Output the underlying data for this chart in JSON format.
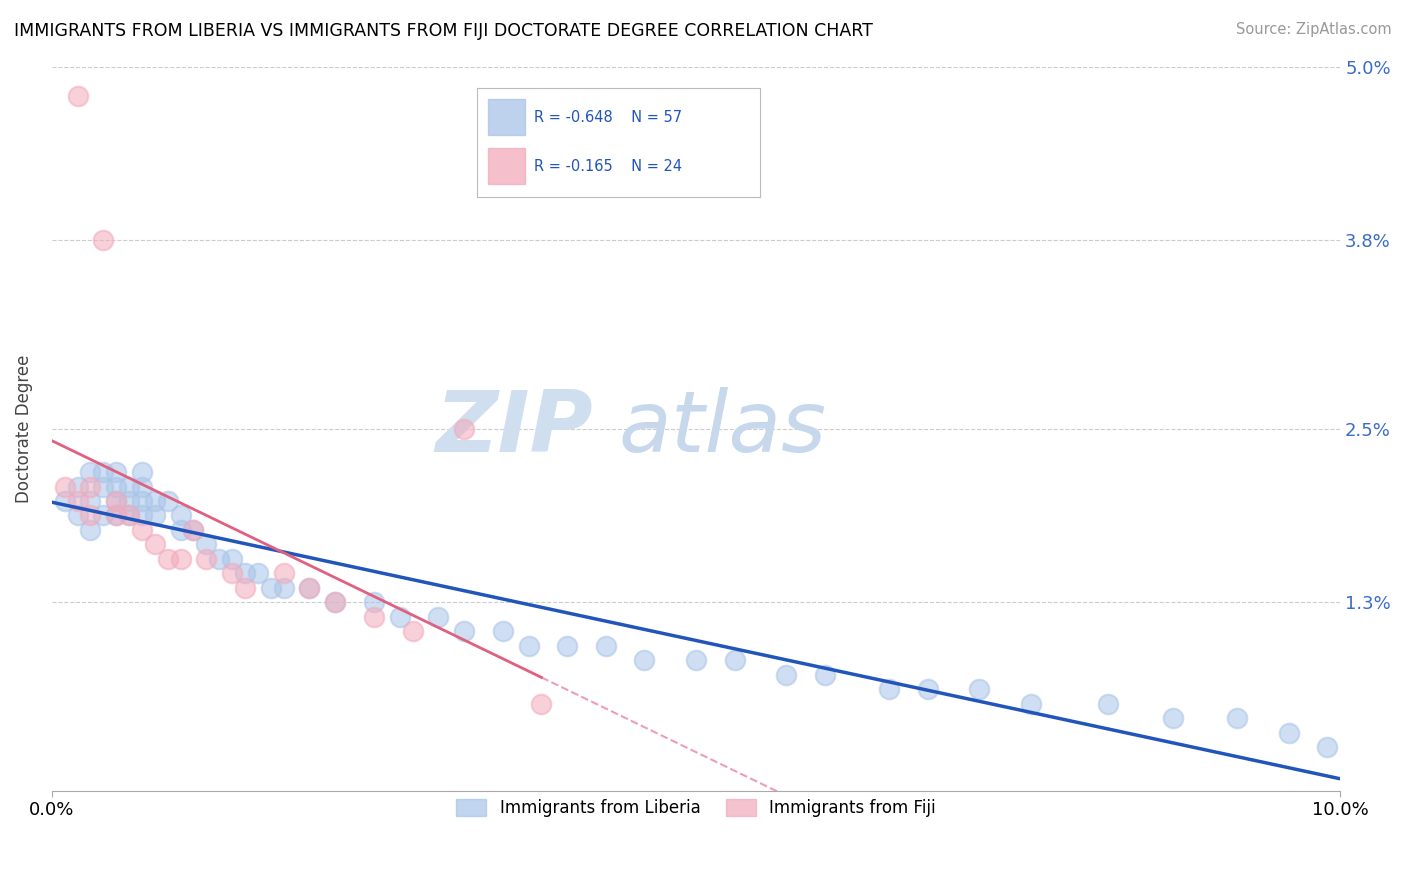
{
  "title": "IMMIGRANTS FROM LIBERIA VS IMMIGRANTS FROM FIJI DOCTORATE DEGREE CORRELATION CHART",
  "source": "Source: ZipAtlas.com",
  "ylabel": "Doctorate Degree",
  "legend_label_1": "Immigrants from Liberia",
  "legend_label_2": "Immigrants from Fiji",
  "R1": -0.648,
  "N1": 57,
  "R2": -0.165,
  "N2": 24,
  "color_liberia": "#a8c4e8",
  "color_fiji": "#f2aabb",
  "color_line_liberia": "#2255bb",
  "color_line_fiji": "#e06080",
  "xlim": [
    0.0,
    0.1
  ],
  "ylim": [
    0.0,
    0.05
  ],
  "ytick_vals": [
    0.0,
    0.013,
    0.025,
    0.038,
    0.05
  ],
  "ytick_labels": [
    "",
    "1.3%",
    "2.5%",
    "3.8%",
    "5.0%"
  ],
  "background_color": "#ffffff",
  "grid_color": "#cccccc",
  "liberia_x": [
    0.001,
    0.002,
    0.002,
    0.003,
    0.003,
    0.003,
    0.004,
    0.004,
    0.004,
    0.005,
    0.005,
    0.005,
    0.005,
    0.006,
    0.006,
    0.006,
    0.007,
    0.007,
    0.007,
    0.007,
    0.008,
    0.008,
    0.009,
    0.01,
    0.01,
    0.011,
    0.012,
    0.013,
    0.014,
    0.015,
    0.016,
    0.017,
    0.018,
    0.02,
    0.022,
    0.025,
    0.027,
    0.03,
    0.032,
    0.035,
    0.037,
    0.04,
    0.043,
    0.046,
    0.05,
    0.053,
    0.057,
    0.06,
    0.065,
    0.068,
    0.072,
    0.076,
    0.082,
    0.087,
    0.092,
    0.096,
    0.099
  ],
  "liberia_y": [
    0.02,
    0.021,
    0.019,
    0.022,
    0.02,
    0.018,
    0.021,
    0.019,
    0.022,
    0.021,
    0.02,
    0.019,
    0.022,
    0.02,
    0.021,
    0.019,
    0.02,
    0.021,
    0.019,
    0.022,
    0.02,
    0.019,
    0.02,
    0.019,
    0.018,
    0.018,
    0.017,
    0.016,
    0.016,
    0.015,
    0.015,
    0.014,
    0.014,
    0.014,
    0.013,
    0.013,
    0.012,
    0.012,
    0.011,
    0.011,
    0.01,
    0.01,
    0.01,
    0.009,
    0.009,
    0.009,
    0.008,
    0.008,
    0.007,
    0.007,
    0.007,
    0.006,
    0.006,
    0.005,
    0.005,
    0.004,
    0.003
  ],
  "fiji_x": [
    0.001,
    0.002,
    0.002,
    0.003,
    0.003,
    0.004,
    0.005,
    0.005,
    0.006,
    0.007,
    0.008,
    0.009,
    0.01,
    0.011,
    0.012,
    0.014,
    0.015,
    0.018,
    0.02,
    0.022,
    0.025,
    0.028,
    0.032,
    0.038
  ],
  "fiji_y": [
    0.021,
    0.048,
    0.02,
    0.019,
    0.021,
    0.038,
    0.02,
    0.019,
    0.019,
    0.018,
    0.017,
    0.016,
    0.016,
    0.018,
    0.016,
    0.015,
    0.014,
    0.015,
    0.014,
    0.013,
    0.012,
    0.011,
    0.025,
    0.006
  ]
}
